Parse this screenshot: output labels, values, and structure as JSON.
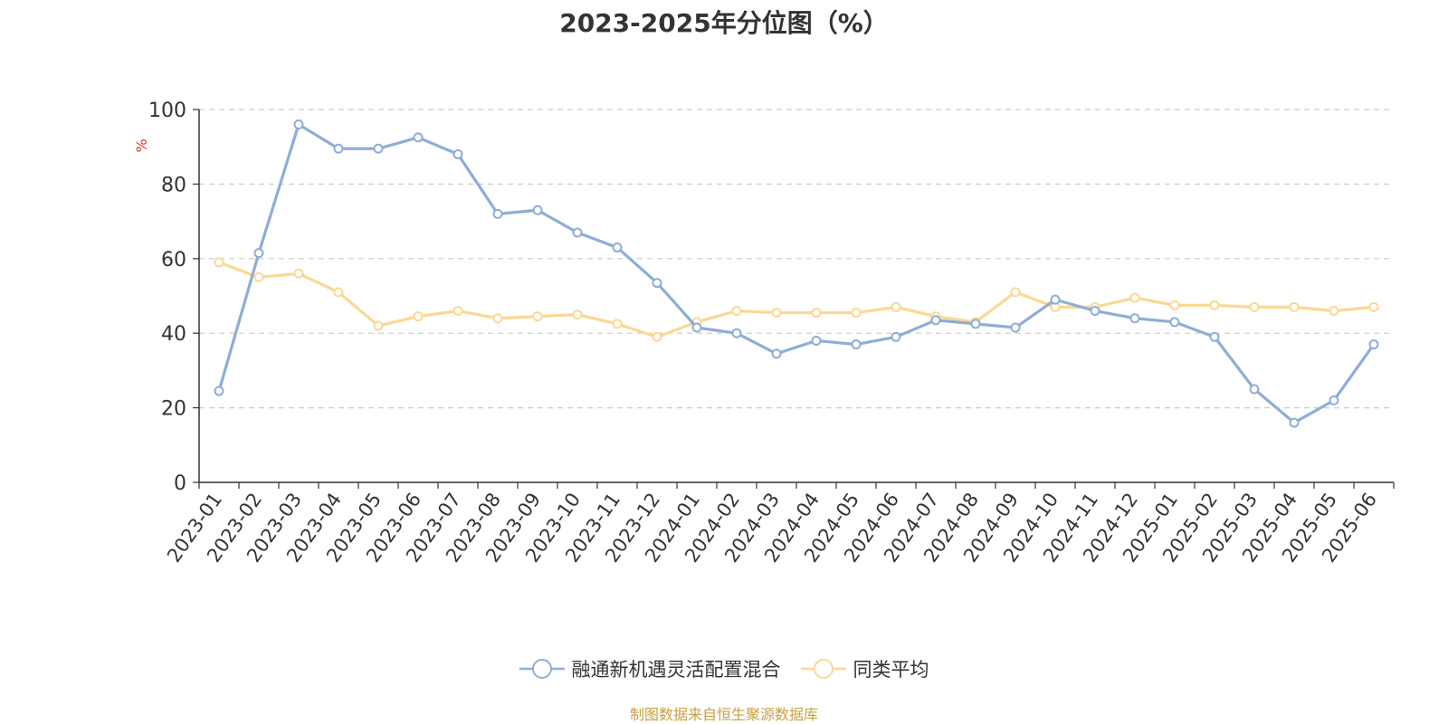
{
  "chart_data": {
    "type": "line",
    "title": "2023-2025年分位图（%）",
    "ylabel": "%",
    "xlabel": "",
    "ylim": [
      0,
      100
    ],
    "yticks": [
      0,
      20,
      40,
      60,
      80,
      100
    ],
    "grid": true,
    "legend_position": "bottom",
    "categories": [
      "2023-01",
      "2023-02",
      "2023-03",
      "2023-04",
      "2023-05",
      "2023-06",
      "2023-07",
      "2023-08",
      "2023-09",
      "2023-10",
      "2023-11",
      "2023-12",
      "2024-01",
      "2024-02",
      "2024-03",
      "2024-04",
      "2024-05",
      "2024-06",
      "2024-07",
      "2024-08",
      "2024-09",
      "2024-10",
      "2024-11",
      "2024-12",
      "2025-01",
      "2025-02",
      "2025-03",
      "2025-04",
      "2025-05",
      "2025-06"
    ],
    "series": [
      {
        "name": "融通新机遇灵活配置混合",
        "color": "#8eadd8",
        "values": [
          24.5,
          61.5,
          96,
          89.5,
          89.5,
          92.5,
          88,
          72,
          73,
          67,
          63,
          53.5,
          41.5,
          40,
          34.5,
          38,
          37,
          39,
          43.5,
          42.5,
          41.5,
          49,
          46,
          44,
          43,
          39,
          25,
          16,
          22,
          37
        ]
      },
      {
        "name": "同类平均",
        "color": "#fbd893",
        "values": [
          59,
          55,
          56,
          51,
          42,
          44.5,
          46,
          44,
          44.5,
          45,
          42.5,
          39,
          43,
          46,
          45.5,
          45.5,
          45.5,
          47,
          44.5,
          43,
          51,
          47,
          47,
          49.5,
          47.5,
          47.5,
          47,
          47,
          46,
          47
        ]
      }
    ]
  },
  "source_note": "制图数据来自恒生聚源数据库"
}
